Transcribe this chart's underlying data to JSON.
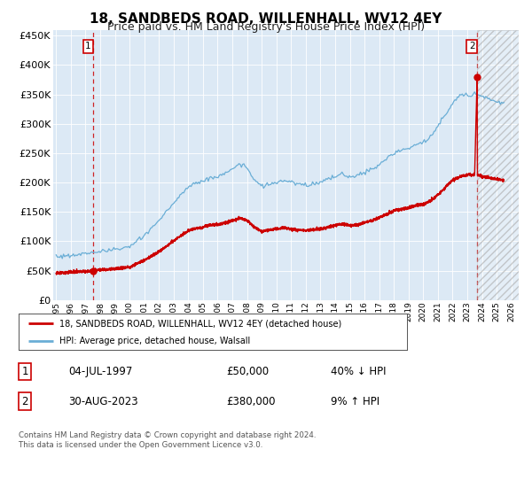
{
  "title": "18, SANDBEDS ROAD, WILLENHALL, WV12 4EY",
  "subtitle": "Price paid vs. HM Land Registry's House Price Index (HPI)",
  "title_fontsize": 11,
  "subtitle_fontsize": 9,
  "bg_color": "#dce9f5",
  "hpi_color": "#6aaed6",
  "price_color": "#cc0000",
  "dashed_color": "#cc0000",
  "marker_color": "#cc0000",
  "ylim": [
    0,
    460000
  ],
  "yticks": [
    0,
    50000,
    100000,
    150000,
    200000,
    250000,
    300000,
    350000,
    400000,
    450000
  ],
  "ytick_labels": [
    "£0",
    "£50K",
    "£100K",
    "£150K",
    "£200K",
    "£250K",
    "£300K",
    "£350K",
    "£400K",
    "£450K"
  ],
  "transaction1_x": 1997.54,
  "transaction1_price": 50000,
  "transaction1_date": "04-JUL-1997",
  "transaction1_pct": "40%",
  "transaction1_dir": "↓",
  "transaction2_x": 2023.67,
  "transaction2_price": 380000,
  "transaction2_date": "30-AUG-2023",
  "transaction2_pct": "9%",
  "transaction2_dir": "↑",
  "legend_label1": "18, SANDBEDS ROAD, WILLENHALL, WV12 4EY (detached house)",
  "legend_label2": "HPI: Average price, detached house, Walsall",
  "footer": "Contains HM Land Registry data © Crown copyright and database right 2024.\nThis data is licensed under the Open Government Licence v3.0.",
  "hatch_start": 2023.67,
  "hatch_end": 2026.5,
  "xmin": 1994.8,
  "xmax": 2026.5
}
